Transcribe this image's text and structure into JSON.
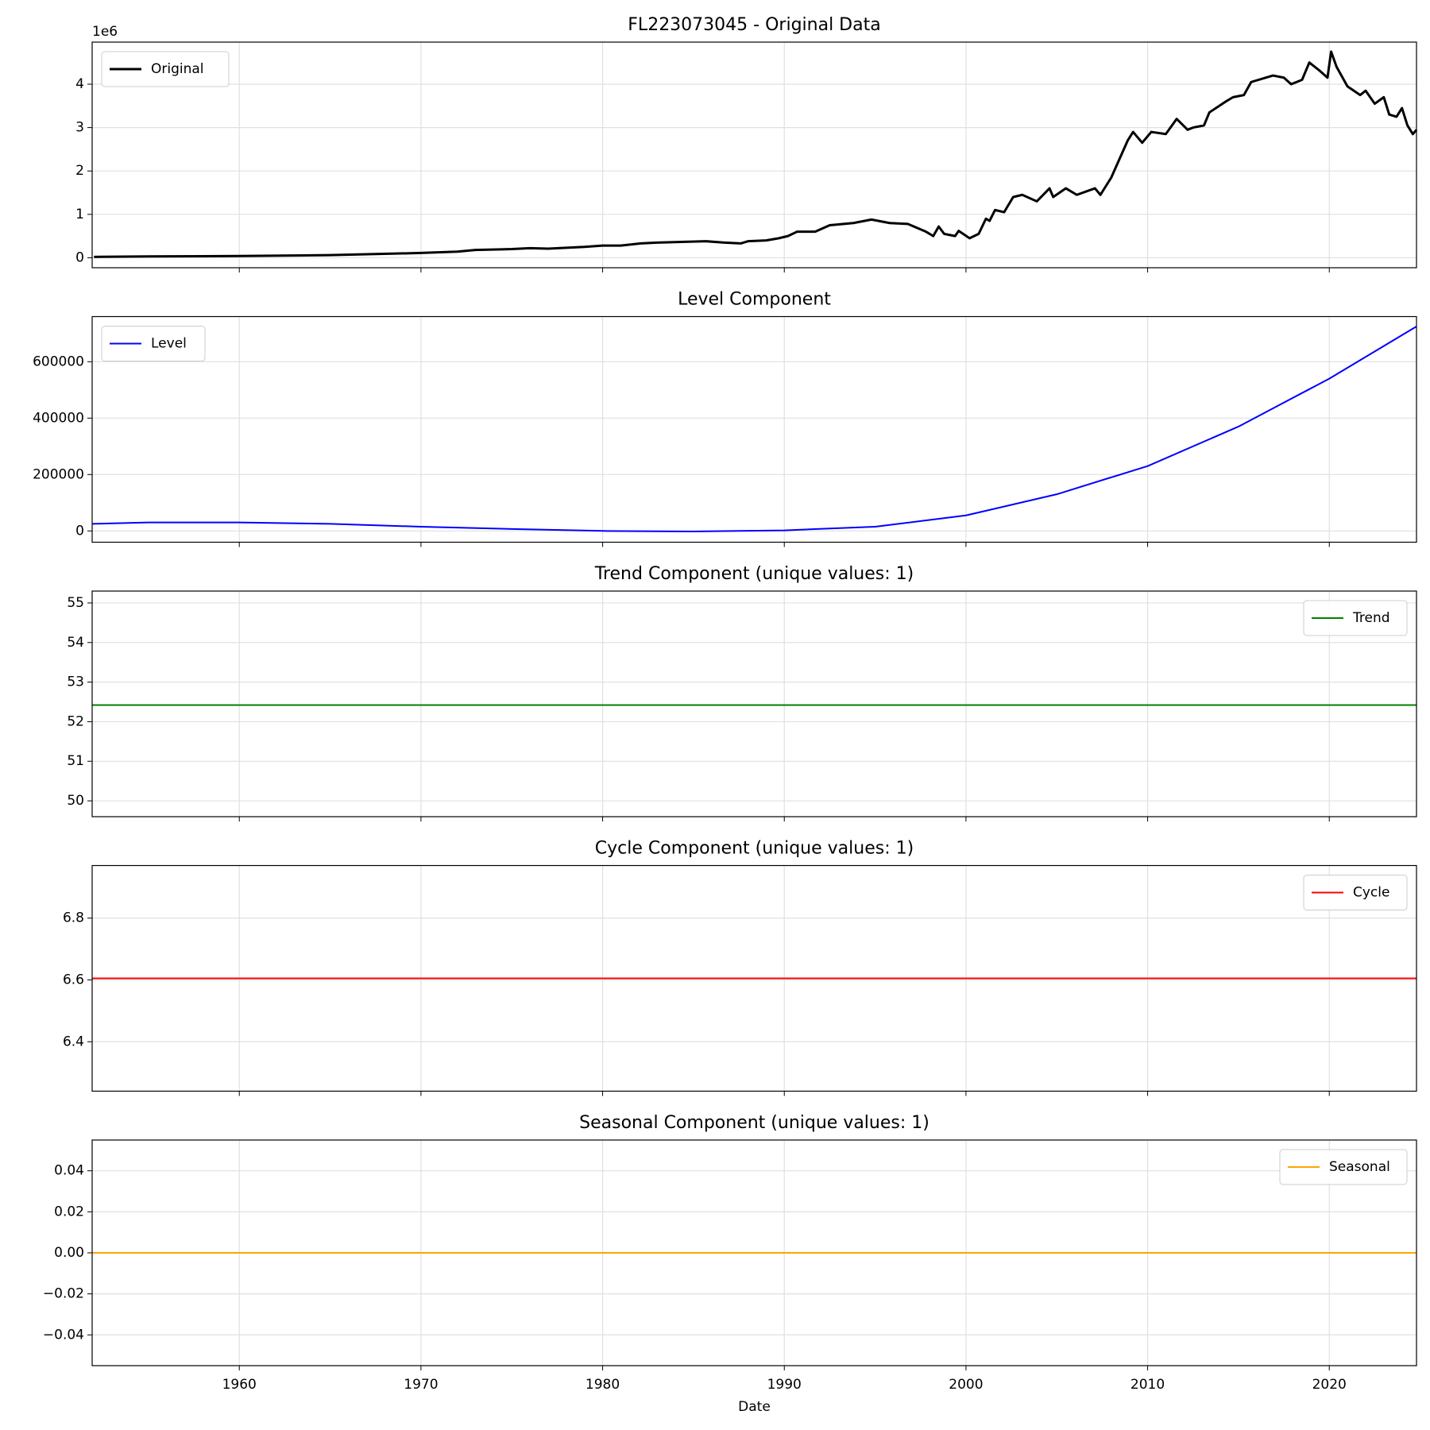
{
  "chart_data": [
    {
      "type": "line",
      "title": "FL223073045 - Original Data",
      "offset_text": "1e6",
      "legend": "upper left",
      "grid": true,
      "x": [
        1952,
        1955,
        1960,
        1965,
        1970,
        1972,
        1973,
        1975,
        1976,
        1977,
        1978,
        1979,
        1980,
        1981,
        1982.1,
        1983,
        1985.7,
        1986.7,
        1987.6,
        1988,
        1989,
        1989.7,
        1990.2,
        1990.7,
        1991.7,
        1992.5,
        1993.8,
        1994.8,
        1995.8,
        1996.8,
        1997.8,
        1998.2,
        1998.5,
        1998.8,
        1999.4,
        1999.6,
        2000.2,
        2000.7,
        2001.1,
        2001.3,
        2001.6,
        2002.1,
        2002.6,
        2003.1,
        2003.9,
        2004.6,
        2004.8,
        2005.5,
        2006.1,
        2007.1,
        2007.4,
        2008,
        2008.9,
        2009.2,
        2009.7,
        2010.2,
        2011,
        2011.6,
        2012.2,
        2012.5,
        2013.1,
        2013.4,
        2014.3,
        2014.7,
        2015.3,
        2015.7,
        2016.9,
        2017.5,
        2017.9,
        2018.5,
        2018.9,
        2019.5,
        2019.9,
        2020.1,
        2020.4,
        2021,
        2021.7,
        2022,
        2022.5,
        2023,
        2023.3,
        2023.7,
        2024,
        2024.3,
        2024.6,
        2024.8
      ],
      "series": [
        {
          "name": "Original",
          "color": "#000000",
          "width": 3,
          "values": [
            0.02,
            0.03,
            0.04,
            0.06,
            0.11,
            0.14,
            0.18,
            0.2,
            0.22,
            0.21,
            0.23,
            0.25,
            0.28,
            0.28,
            0.33,
            0.35,
            0.38,
            0.35,
            0.33,
            0.38,
            0.4,
            0.45,
            0.5,
            0.6,
            0.6,
            0.75,
            0.8,
            0.88,
            0.8,
            0.78,
            0.6,
            0.5,
            0.72,
            0.55,
            0.5,
            0.62,
            0.45,
            0.55,
            0.9,
            0.85,
            1.1,
            1.05,
            1.4,
            1.45,
            1.3,
            1.6,
            1.4,
            1.6,
            1.45,
            1.6,
            1.45,
            1.85,
            2.7,
            2.9,
            2.65,
            2.9,
            2.85,
            3.2,
            2.95,
            3.0,
            3.05,
            3.35,
            3.6,
            3.7,
            3.75,
            4.05,
            4.2,
            4.15,
            4.0,
            4.1,
            4.5,
            4.3,
            4.15,
            4.75,
            4.4,
            3.95,
            3.75,
            3.85,
            3.55,
            3.7,
            3.3,
            3.25,
            3.45,
            3.05,
            2.85,
            2.95
          ]
        }
      ],
      "xlim": [
        1951.9,
        2024.8
      ],
      "ylim": [
        -0.23,
        4.97
      ],
      "yticks": [
        0,
        1,
        2,
        3,
        4
      ]
    },
    {
      "type": "line",
      "title": "Level Component",
      "legend": "upper left",
      "grid": true,
      "x": [
        1951.9,
        1955,
        1960,
        1965,
        1970,
        1975,
        1980,
        1985,
        1990,
        1995,
        2000,
        2005,
        2010,
        2015,
        2020,
        2024.8
      ],
      "series": [
        {
          "name": "Level",
          "color": "#0000ff",
          "width": 2,
          "values": [
            25000,
            30000,
            30000,
            25000,
            15000,
            7000,
            0,
            -2000,
            2000,
            15000,
            55000,
            130000,
            230000,
            370000,
            540000,
            725000
          ]
        }
      ],
      "xlim": [
        1951.9,
        2024.8
      ],
      "ylim": [
        -40000,
        760000
      ],
      "yticks": [
        0,
        200000,
        400000,
        600000
      ]
    },
    {
      "type": "line",
      "title": "Trend Component (unique values: 1)",
      "legend": "upper right",
      "grid": true,
      "x": [
        1951.9,
        2024.8
      ],
      "series": [
        {
          "name": "Trend",
          "color": "#008000",
          "width": 2,
          "values": [
            52.42,
            52.42
          ]
        }
      ],
      "xlim": [
        1951.9,
        2024.8
      ],
      "ylim": [
        49.6,
        55.3
      ],
      "yticks": [
        50,
        51,
        52,
        53,
        54,
        55
      ]
    },
    {
      "type": "line",
      "title": "Cycle Component (unique values: 1)",
      "legend": "upper right",
      "grid": true,
      "x": [
        1951.9,
        2024.8
      ],
      "series": [
        {
          "name": "Cycle",
          "color": "#ff0000",
          "width": 2,
          "values": [
            6.605,
            6.605
          ]
        }
      ],
      "xlim": [
        1951.9,
        2024.8
      ],
      "ylim": [
        6.24,
        6.97
      ],
      "yticks": [
        6.4,
        6.6,
        6.8
      ]
    },
    {
      "type": "line",
      "title": "Seasonal Component (unique values: 1)",
      "legend": "upper right",
      "grid": true,
      "x": [
        1951.9,
        2024.8
      ],
      "series": [
        {
          "name": "Seasonal",
          "color": "#ffa500",
          "width": 2,
          "values": [
            0,
            0
          ]
        }
      ],
      "xlim": [
        1951.9,
        2024.8
      ],
      "ylim": [
        -0.055,
        0.055
      ],
      "yticks": [
        {
          "value": -0.04,
          "label": "−0.04"
        },
        {
          "value": -0.02,
          "label": "−0.02"
        },
        {
          "value": 0,
          "label": "0.00"
        },
        0.02,
        0.04
      ],
      "xticks": [
        1960,
        1970,
        1980,
        1990,
        2000,
        2010,
        2020
      ],
      "x_label": "Date"
    }
  ]
}
